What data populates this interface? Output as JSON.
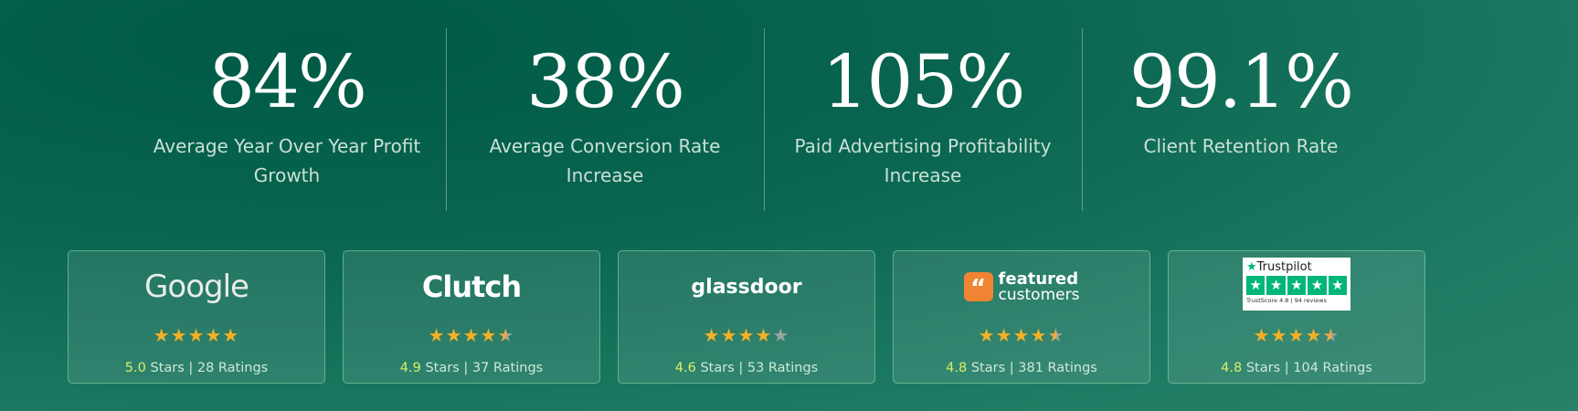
{
  "stats": [
    {
      "value": "84%",
      "label": "Average Year Over Year Profit Growth"
    },
    {
      "value": "38%",
      "label": "Average Conversion Rate Increase"
    },
    {
      "value": "105%",
      "label": "Paid Advertising Profitability Increase"
    },
    {
      "value": "99.1%",
      "label": "Client Retention Rate"
    }
  ],
  "reviews": [
    {
      "platform": "Google",
      "score": "5.0",
      "rest": " Stars | 28 Ratings",
      "stars": 5.0
    },
    {
      "platform": "Clutch",
      "score": "4.9",
      "rest": " Stars | 37 Ratings",
      "stars": 4.9
    },
    {
      "platform": "glassdoor",
      "score": "4.6",
      "rest": " Stars | 53 Ratings",
      "stars": 4.6
    },
    {
      "platform_line1": "featured",
      "platform_line2": "customers",
      "score": "4.8",
      "rest": " Stars | 381 Ratings",
      "stars": 4.8
    },
    {
      "platform": "Trustpilot",
      "trustscore": "TrustScore 4.8 | 94 reviews",
      "score": "4.8",
      "rest": " Stars | 104 Ratings",
      "stars": 4.8
    }
  ],
  "colors": {
    "star": "#f5b025",
    "score": "#d9ee6a",
    "trustpilot": "#00b67a",
    "featured": "#ef8432"
  }
}
